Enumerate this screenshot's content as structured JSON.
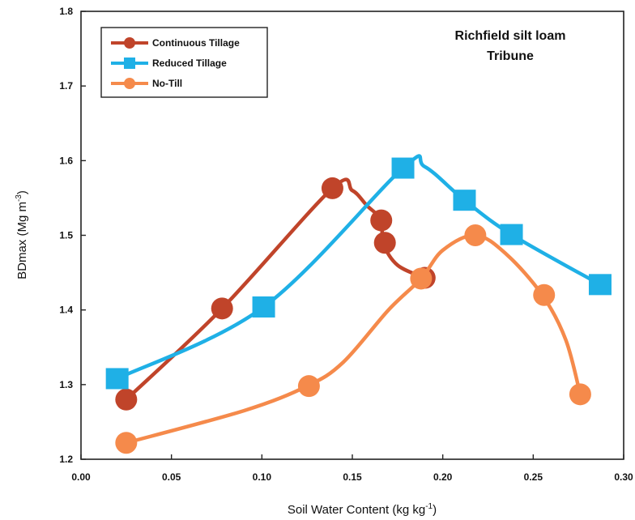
{
  "chart_data": {
    "type": "line",
    "title": "",
    "annotation": [
      "Richfield silt loam",
      "Tribune"
    ],
    "xlabel": "Soil Water Content (kg kg",
    "xlabel_sup": "-1",
    "xlabel_close": ")",
    "ylabel": "BDmax (Mg m",
    "ylabel_sup": "-3",
    "ylabel_close": ")",
    "xlim": [
      0.0,
      0.3
    ],
    "ylim": [
      1.2,
      1.8
    ],
    "xticks": [
      "0.00",
      "0.05",
      "0.10",
      "0.15",
      "0.20",
      "0.25",
      "0.30"
    ],
    "yticks": [
      "1.2",
      "1.3",
      "1.4",
      "1.5",
      "1.6",
      "1.7",
      "1.8"
    ],
    "grid": false,
    "legend_position": "top-left",
    "series": [
      {
        "name": "Continuous Tillage",
        "color": "#c0442a",
        "marker": "circle",
        "curve": [
          [
            0.025,
            1.28
          ],
          [
            0.078,
            1.402
          ],
          [
            0.139,
            1.563
          ],
          [
            0.15,
            1.56
          ],
          [
            0.158,
            1.54
          ],
          [
            0.166,
            1.52
          ],
          [
            0.167,
            1.49
          ],
          [
            0.175,
            1.46
          ],
          [
            0.19,
            1.443
          ]
        ],
        "points": [
          [
            0.025,
            1.28
          ],
          [
            0.078,
            1.402
          ],
          [
            0.139,
            1.563
          ],
          [
            0.166,
            1.52
          ],
          [
            0.168,
            1.49
          ],
          [
            0.19,
            1.443
          ]
        ]
      },
      {
        "name": "Reduced Tillage",
        "color": "#1fb0e6",
        "marker": "square",
        "curve": [
          [
            0.02,
            1.308
          ],
          [
            0.101,
            1.404
          ],
          [
            0.178,
            1.59
          ],
          [
            0.19,
            1.592
          ],
          [
            0.212,
            1.547
          ],
          [
            0.238,
            1.501
          ],
          [
            0.287,
            1.434
          ]
        ],
        "points": [
          [
            0.02,
            1.308
          ],
          [
            0.101,
            1.404
          ],
          [
            0.178,
            1.59
          ],
          [
            0.212,
            1.547
          ],
          [
            0.238,
            1.501
          ],
          [
            0.287,
            1.434
          ]
        ]
      },
      {
        "name": "No-Till",
        "color": "#f58a4b",
        "marker": "circle",
        "curve": [
          [
            0.025,
            1.222
          ],
          [
            0.09,
            1.265
          ],
          [
            0.125,
            1.298
          ],
          [
            0.145,
            1.33
          ],
          [
            0.17,
            1.4
          ],
          [
            0.188,
            1.442
          ],
          [
            0.2,
            1.48
          ],
          [
            0.218,
            1.5
          ],
          [
            0.235,
            1.475
          ],
          [
            0.255,
            1.42
          ],
          [
            0.268,
            1.36
          ],
          [
            0.276,
            1.287
          ]
        ],
        "points": [
          [
            0.025,
            1.222
          ],
          [
            0.126,
            1.298
          ],
          [
            0.188,
            1.442
          ],
          [
            0.218,
            1.5
          ],
          [
            0.256,
            1.42
          ],
          [
            0.276,
            1.287
          ]
        ]
      }
    ]
  }
}
